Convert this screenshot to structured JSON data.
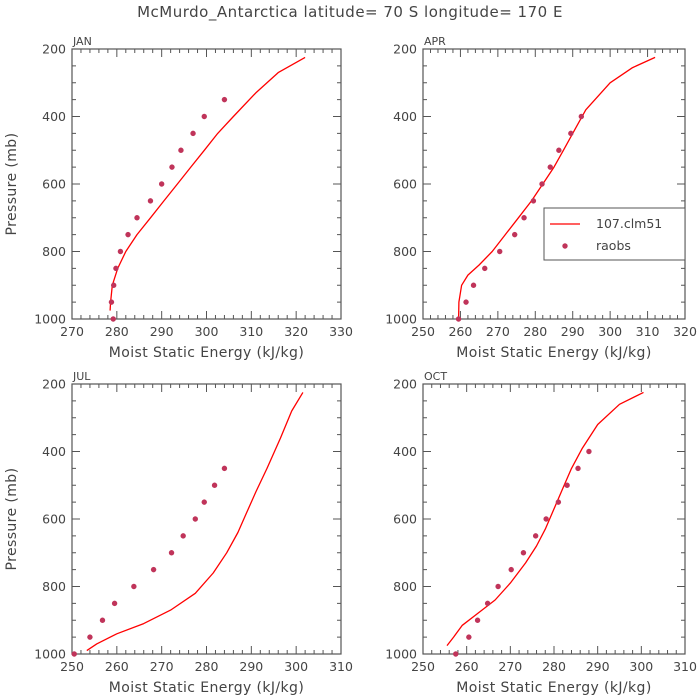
{
  "title": "McMurdo_Antarctica   latitude= 70 S longitude= 170 E",
  "colors": {
    "model_line": "#ff0000",
    "obs_point": "#c0345a",
    "axis": "#555555"
  },
  "legend": {
    "model": "107.clm51",
    "obs": "raobs"
  },
  "chart_data": [
    {
      "type": "line",
      "panel_label": "JAN",
      "xlabel": "Moist Static Energy (kJ/kg)",
      "ylabel": "Pressure (mb)",
      "xlim": [
        270,
        330
      ],
      "ylim": [
        1000,
        200
      ],
      "xticks": [
        270,
        280,
        290,
        300,
        310,
        320,
        330
      ],
      "yticks": [
        200,
        400,
        600,
        800,
        1000
      ],
      "legend": false,
      "series": [
        {
          "name": "107.clm51",
          "kind": "line",
          "x": [
            278.5,
            278.6,
            279.0,
            280.2,
            282.0,
            284.5,
            287.5,
            290.5,
            293.5,
            296.5,
            299.5,
            302.5,
            306.0,
            311.0,
            316.0,
            322.0
          ],
          "y": [
            975,
            950,
            900,
            850,
            800,
            750,
            700,
            650,
            600,
            550,
            500,
            450,
            400,
            330,
            270,
            225
          ]
        },
        {
          "name": "raobs",
          "kind": "scatter",
          "x": [
            279.2,
            278.8,
            279.3,
            279.8,
            280.8,
            282.5,
            284.5,
            287.5,
            290.0,
            292.3,
            294.3,
            297.0,
            299.5,
            304.0
          ],
          "y": [
            1000,
            950,
            900,
            850,
            800,
            750,
            700,
            650,
            600,
            550,
            500,
            450,
            400,
            350
          ]
        }
      ]
    },
    {
      "type": "line",
      "panel_label": "APR",
      "xlabel": "Moist Static Energy (kJ/kg)",
      "ylabel": "",
      "xlim": [
        250,
        320
      ],
      "ylim": [
        1000,
        200
      ],
      "xticks": [
        250,
        260,
        270,
        280,
        290,
        300,
        310,
        320
      ],
      "yticks": [
        200,
        400,
        600,
        800,
        1000
      ],
      "legend": true,
      "legend_position": "center-right",
      "series": [
        {
          "name": "107.clm51",
          "kind": "line",
          "x": [
            259.5,
            259.6,
            260.3,
            262.0,
            265.0,
            268.5,
            272.0,
            275.5,
            279.0,
            282.0,
            285.0,
            287.5,
            290.0,
            293.5,
            300.0,
            306.0,
            312.0
          ],
          "y": [
            1000,
            950,
            900,
            870,
            840,
            800,
            750,
            700,
            650,
            600,
            550,
            500,
            450,
            380,
            300,
            255,
            225
          ]
        },
        {
          "name": "raobs",
          "kind": "scatter",
          "x": [
            259.5,
            261.5,
            263.5,
            266.5,
            270.5,
            274.5,
            277.0,
            279.5,
            281.8,
            284.0,
            286.3,
            289.5,
            292.3
          ],
          "y": [
            1000,
            950,
            900,
            850,
            800,
            750,
            700,
            650,
            600,
            550,
            500,
            450,
            400
          ]
        }
      ]
    },
    {
      "type": "line",
      "panel_label": "JUL",
      "xlabel": "Moist Static Energy (kJ/kg)",
      "ylabel": "Pressure (mb)",
      "xlim": [
        250,
        310
      ],
      "ylim": [
        1000,
        200
      ],
      "xticks": [
        250,
        260,
        270,
        280,
        290,
        300,
        310
      ],
      "yticks": [
        200,
        400,
        600,
        800,
        1000
      ],
      "legend": false,
      "series": [
        {
          "name": "107.clm51",
          "kind": "line",
          "x": [
            253.3,
            255.5,
            260.0,
            266.0,
            272.0,
            277.5,
            281.5,
            284.5,
            287.0,
            289.0,
            291.0,
            293.5,
            296.5,
            299.0,
            301.5
          ],
          "y": [
            990,
            970,
            940,
            910,
            870,
            820,
            760,
            700,
            640,
            580,
            520,
            450,
            360,
            280,
            225
          ]
        },
        {
          "name": "raobs",
          "kind": "scatter",
          "x": [
            250.5,
            254.0,
            256.8,
            259.5,
            263.8,
            268.2,
            272.2,
            274.8,
            277.5,
            279.5,
            281.8,
            284.0
          ],
          "y": [
            1000,
            950,
            900,
            850,
            800,
            750,
            700,
            650,
            600,
            550,
            500,
            450
          ]
        }
      ]
    },
    {
      "type": "line",
      "panel_label": "OCT",
      "xlabel": "Moist Static Energy (kJ/kg)",
      "ylabel": "",
      "xlim": [
        250,
        310
      ],
      "ylim": [
        1000,
        200
      ],
      "xticks": [
        250,
        260,
        270,
        280,
        290,
        300,
        310
      ],
      "yticks": [
        200,
        400,
        600,
        800,
        1000
      ],
      "legend": false,
      "series": [
        {
          "name": "107.clm51",
          "kind": "line",
          "x": [
            255.5,
            257.0,
            259.0,
            262.5,
            266.5,
            270.0,
            273.5,
            276.0,
            278.0,
            280.0,
            282.0,
            284.0,
            286.5,
            290.0,
            295.0,
            300.5
          ],
          "y": [
            975,
            950,
            915,
            880,
            840,
            790,
            730,
            680,
            630,
            570,
            510,
            450,
            390,
            320,
            260,
            225
          ]
        },
        {
          "name": "raobs",
          "kind": "scatter",
          "x": [
            257.5,
            260.5,
            262.5,
            264.8,
            267.2,
            270.2,
            273.0,
            275.8,
            278.2,
            281.0,
            283.0,
            285.5,
            288.0
          ],
          "y": [
            1000,
            950,
            900,
            850,
            800,
            750,
            700,
            650,
            600,
            550,
            500,
            450,
            400
          ]
        }
      ]
    }
  ]
}
